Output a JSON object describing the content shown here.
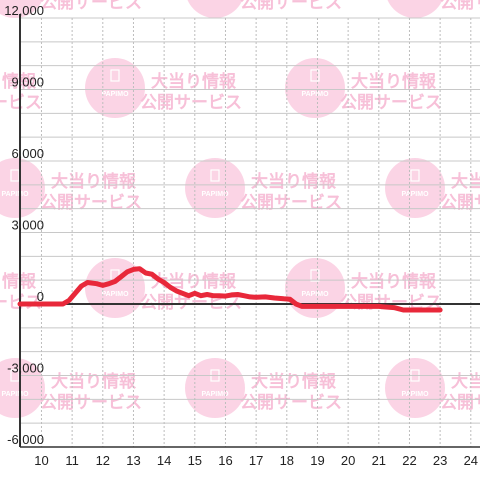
{
  "chart_data": {
    "type": "line",
    "title": "",
    "xlabel": "",
    "ylabel": "",
    "xlim": [
      9.3,
      24.3
    ],
    "ylim": [
      -6000,
      12000
    ],
    "y_ticks": [
      12000,
      9000,
      6000,
      3000,
      0,
      -3000,
      -6000
    ],
    "y_tick_labels": [
      "12,000",
      "9,000",
      "6,000",
      "3,000",
      "0",
      "-3,000",
      "-6,000"
    ],
    "x_ticks": [
      10,
      11,
      12,
      13,
      14,
      15,
      16,
      17,
      18,
      19,
      20,
      21,
      22,
      23,
      24
    ],
    "x_tick_labels": [
      "10",
      "11",
      "12",
      "13",
      "14",
      "15",
      "16",
      "17",
      "18",
      "19",
      "20",
      "21",
      "22",
      "23",
      "24"
    ],
    "grid": true,
    "line_color": "#e8283a",
    "series": [
      {
        "x": [
          9.3,
          10.7,
          10.9,
          11.1,
          11.3,
          11.5,
          11.8,
          12.0,
          12.2,
          12.4,
          12.6,
          12.8,
          13.0,
          13.2,
          13.4,
          13.6,
          13.8,
          14.0,
          14.2,
          14.4,
          14.6,
          14.8,
          15.0,
          15.2,
          15.4,
          15.6,
          15.8,
          16.0,
          16.2,
          16.4,
          16.6,
          16.8,
          17.0,
          17.3,
          17.6,
          17.9,
          18.1,
          18.3,
          18.5,
          18.7,
          19.0,
          20.0,
          21.0,
          21.5,
          21.8,
          22.0,
          22.5,
          23.0
        ],
        "y": [
          0,
          0,
          150,
          450,
          750,
          900,
          850,
          780,
          850,
          950,
          1150,
          1350,
          1450,
          1480,
          1300,
          1250,
          1050,
          900,
          700,
          550,
          450,
          350,
          450,
          350,
          400,
          350,
          350,
          330,
          380,
          400,
          350,
          300,
          280,
          300,
          250,
          220,
          200,
          0,
          -100,
          -100,
          -100,
          -100,
          -100,
          -150,
          -250,
          -250,
          -250,
          -250
        ]
      }
    ],
    "watermark": {
      "brand": "PAPIMO",
      "line1": "大当り情報",
      "line2": "公開サービス",
      "circle_color": "#f9c6dc",
      "text_color": "#f7c0d8"
    }
  }
}
